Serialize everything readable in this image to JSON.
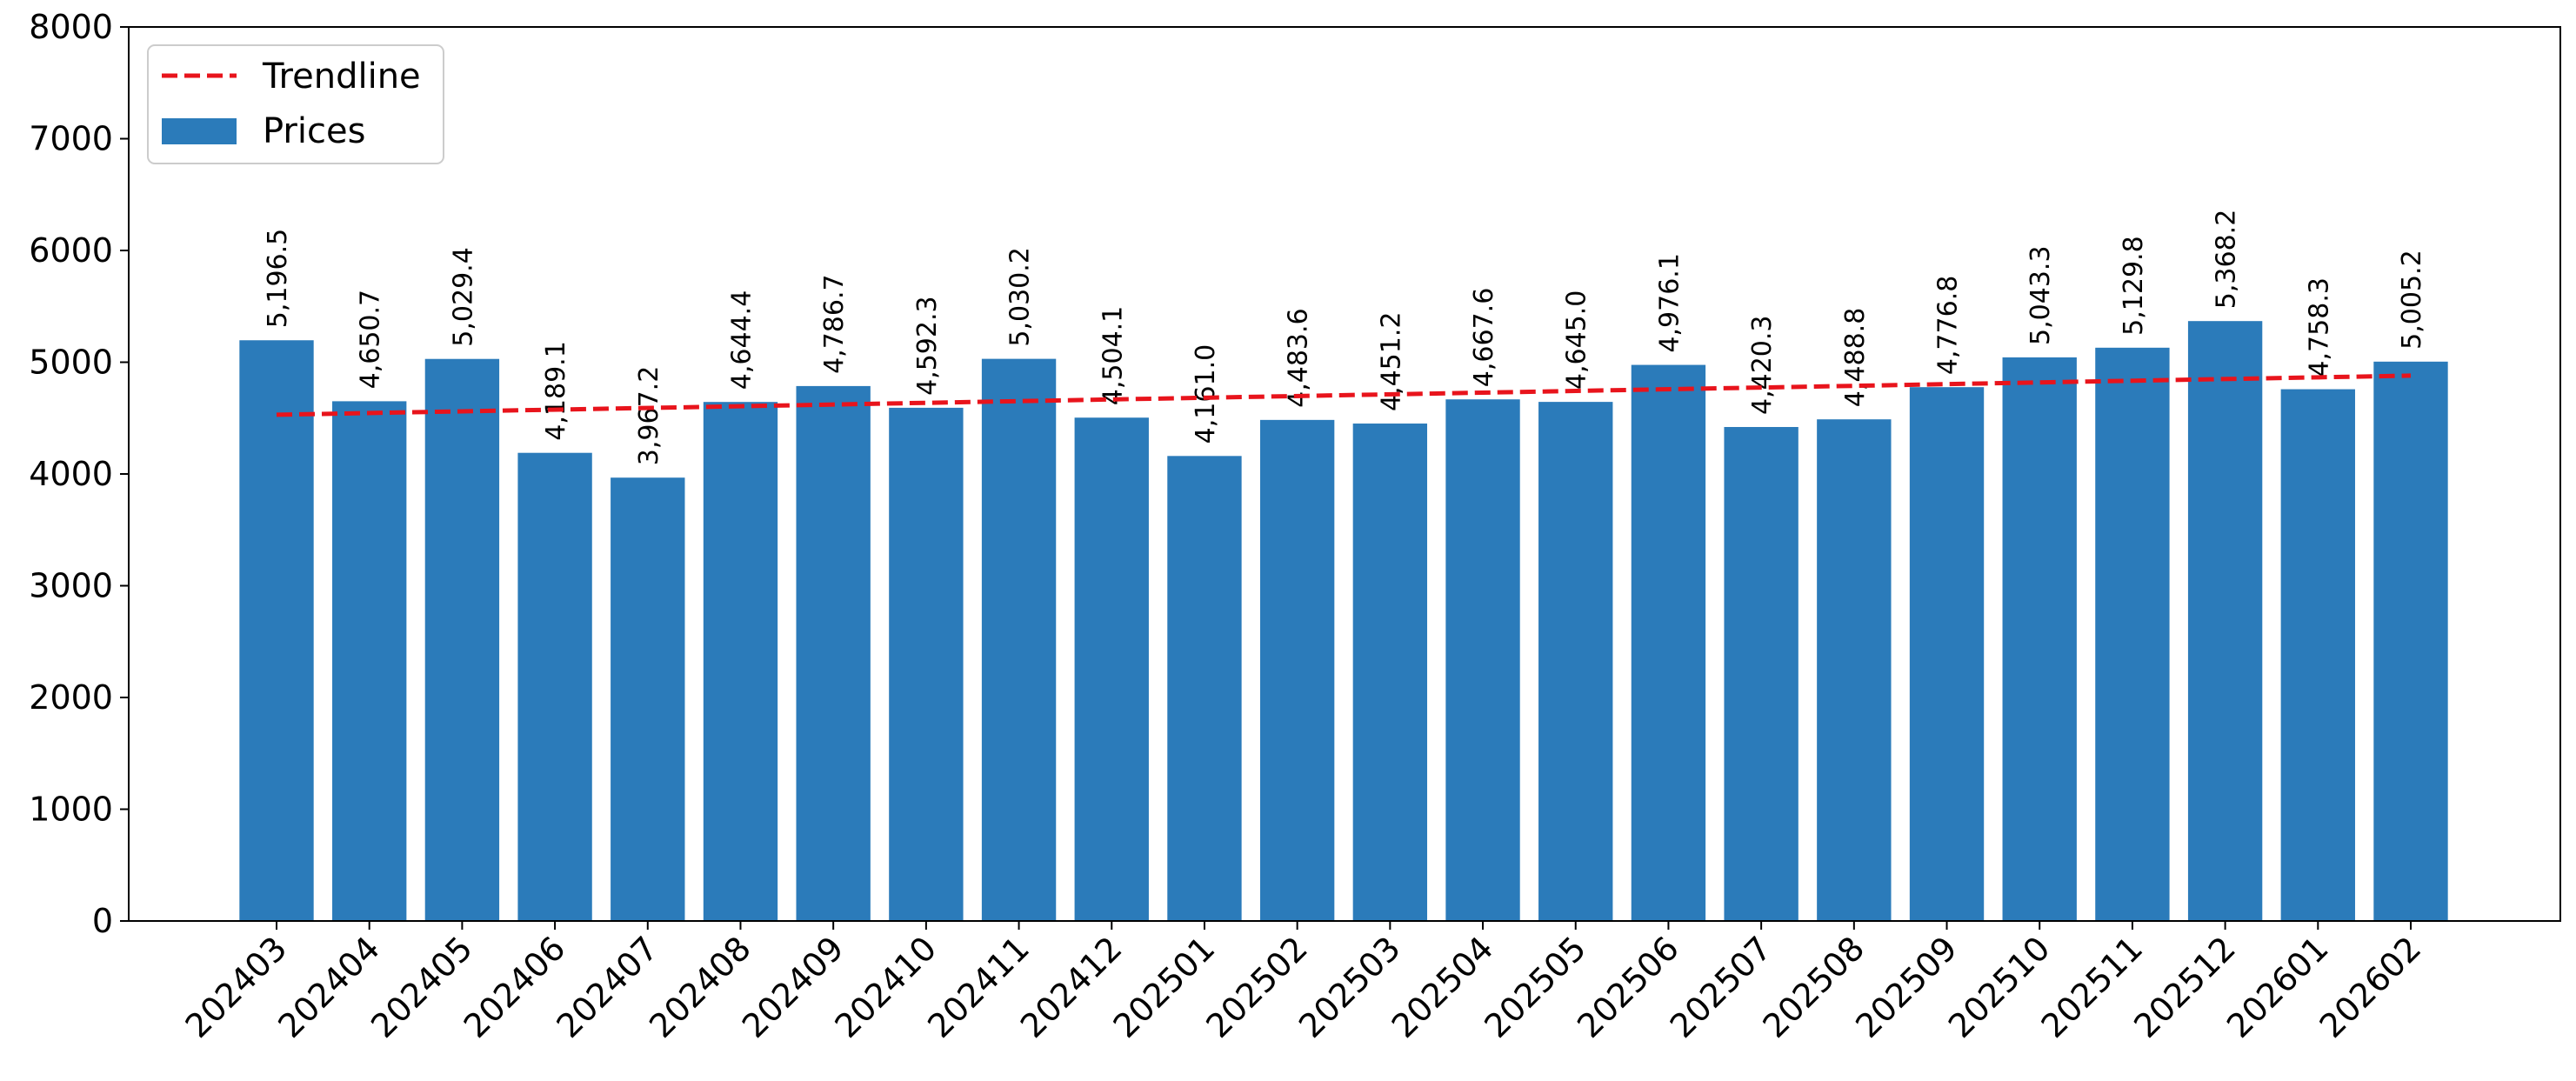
{
  "chart_data": {
    "type": "bar",
    "categories": [
      "202403",
      "202404",
      "202405",
      "202406",
      "202407",
      "202408",
      "202409",
      "202410",
      "202411",
      "202412",
      "202501",
      "202502",
      "202503",
      "202504",
      "202505",
      "202506",
      "202507",
      "202508",
      "202509",
      "202510",
      "202511",
      "202512",
      "202601",
      "202602"
    ],
    "series": [
      {
        "name": "Prices",
        "values": [
          5196.5,
          4650.7,
          5029.4,
          4189.1,
          3967.2,
          4644.4,
          4786.7,
          4592.3,
          5030.2,
          4504.1,
          4161.0,
          4483.6,
          4451.2,
          4667.6,
          4645.0,
          4976.1,
          4420.3,
          4488.8,
          4776.8,
          5043.3,
          5129.8,
          5368.2,
          4758.3,
          5005.2
        ],
        "value_labels": [
          "5,196.5",
          "4,650.7",
          "5,029.4",
          "4,189.1",
          "3,967.2",
          "4,644.4",
          "4,786.7",
          "4,592.3",
          "5,030.2",
          "4,504.1",
          "4,161.0",
          "4,483.6",
          "4,451.2",
          "4,667.6",
          "4,645.0",
          "4,976.1",
          "4,420.3",
          "4,488.8",
          "4,776.8",
          "5,043.3",
          "5,129.8",
          "5,368.2",
          "4,758.3",
          "5,005.2"
        ],
        "color": "#2b7bba"
      }
    ],
    "trendline": {
      "name": "Trendline",
      "start": 4530,
      "end": 4880,
      "color": "#e8141c",
      "style": "dashed"
    },
    "ylim": [
      0,
      8000
    ],
    "yticks": [
      0,
      1000,
      2000,
      3000,
      4000,
      5000,
      6000,
      7000,
      8000
    ],
    "title": "",
    "xlabel": "",
    "ylabel": "",
    "grid": false,
    "legend_position": "top-left"
  }
}
